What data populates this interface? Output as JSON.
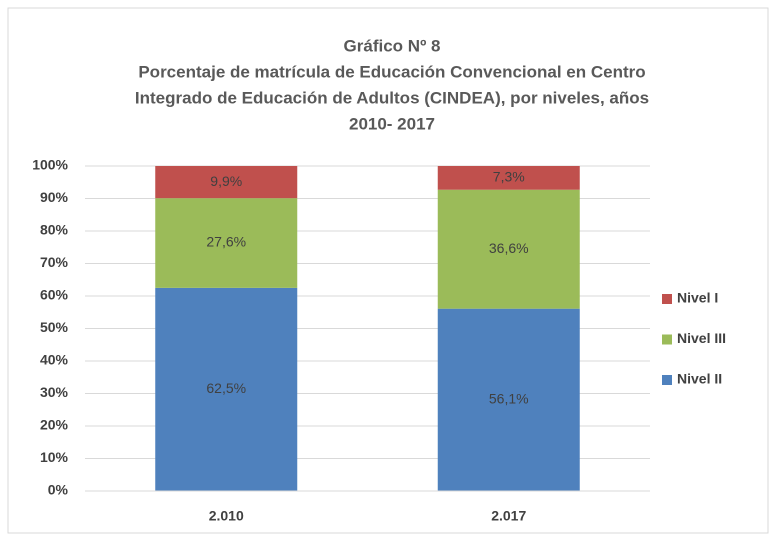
{
  "chart_data": {
    "type": "stacked_bar",
    "title_lines": [
      "Gráfico Nº 8",
      "Porcentaje de matrícula de Educación Convencional en Centro",
      "Integrado de Educación de Adultos (CINDEA), por niveles, años",
      "2010- 2017"
    ],
    "categories": [
      "2.010",
      "2.017"
    ],
    "series": [
      {
        "name": "Nivel II",
        "color": "#4f81bd",
        "values": [
          62.5,
          56.1
        ],
        "value_labels": [
          "62,5%",
          "56,1%"
        ]
      },
      {
        "name": "Nivel III",
        "color": "#9bbb59",
        "values": [
          27.6,
          36.6
        ],
        "value_labels": [
          "27,6%",
          "36,6%"
        ]
      },
      {
        "name": "Nivel I",
        "color": "#c0504d",
        "values": [
          9.9,
          7.3
        ],
        "value_labels": [
          "9,9%",
          "7,3%"
        ]
      }
    ],
    "ylim": [
      0,
      100
    ],
    "yticks": [
      {
        "value": 0,
        "label": "0%"
      },
      {
        "value": 10,
        "label": "10%"
      },
      {
        "value": 20,
        "label": "20%"
      },
      {
        "value": 30,
        "label": "30%"
      },
      {
        "value": 40,
        "label": "40%"
      },
      {
        "value": 50,
        "label": "50%"
      },
      {
        "value": 60,
        "label": "60%"
      },
      {
        "value": 70,
        "label": "70%"
      },
      {
        "value": 80,
        "label": "80%"
      },
      {
        "value": 90,
        "label": "90%"
      },
      {
        "value": 100,
        "label": "100%"
      }
    ],
    "grid": true,
    "legend": "right"
  }
}
